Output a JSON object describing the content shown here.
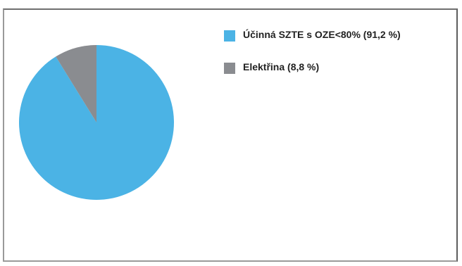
{
  "chart_data": {
    "type": "pie",
    "title": "",
    "slices": [
      {
        "label": "Účinná SZTE s OZE<80% (91,2 %)",
        "value": 91.2,
        "color": "#4bb3e5"
      },
      {
        "label": "Elektřina (8,8 %)",
        "value": 8.8,
        "color": "#8a8c90"
      }
    ],
    "legend_position": "top-right",
    "start_angle": "12 o'clock",
    "direction": "clockwise"
  }
}
